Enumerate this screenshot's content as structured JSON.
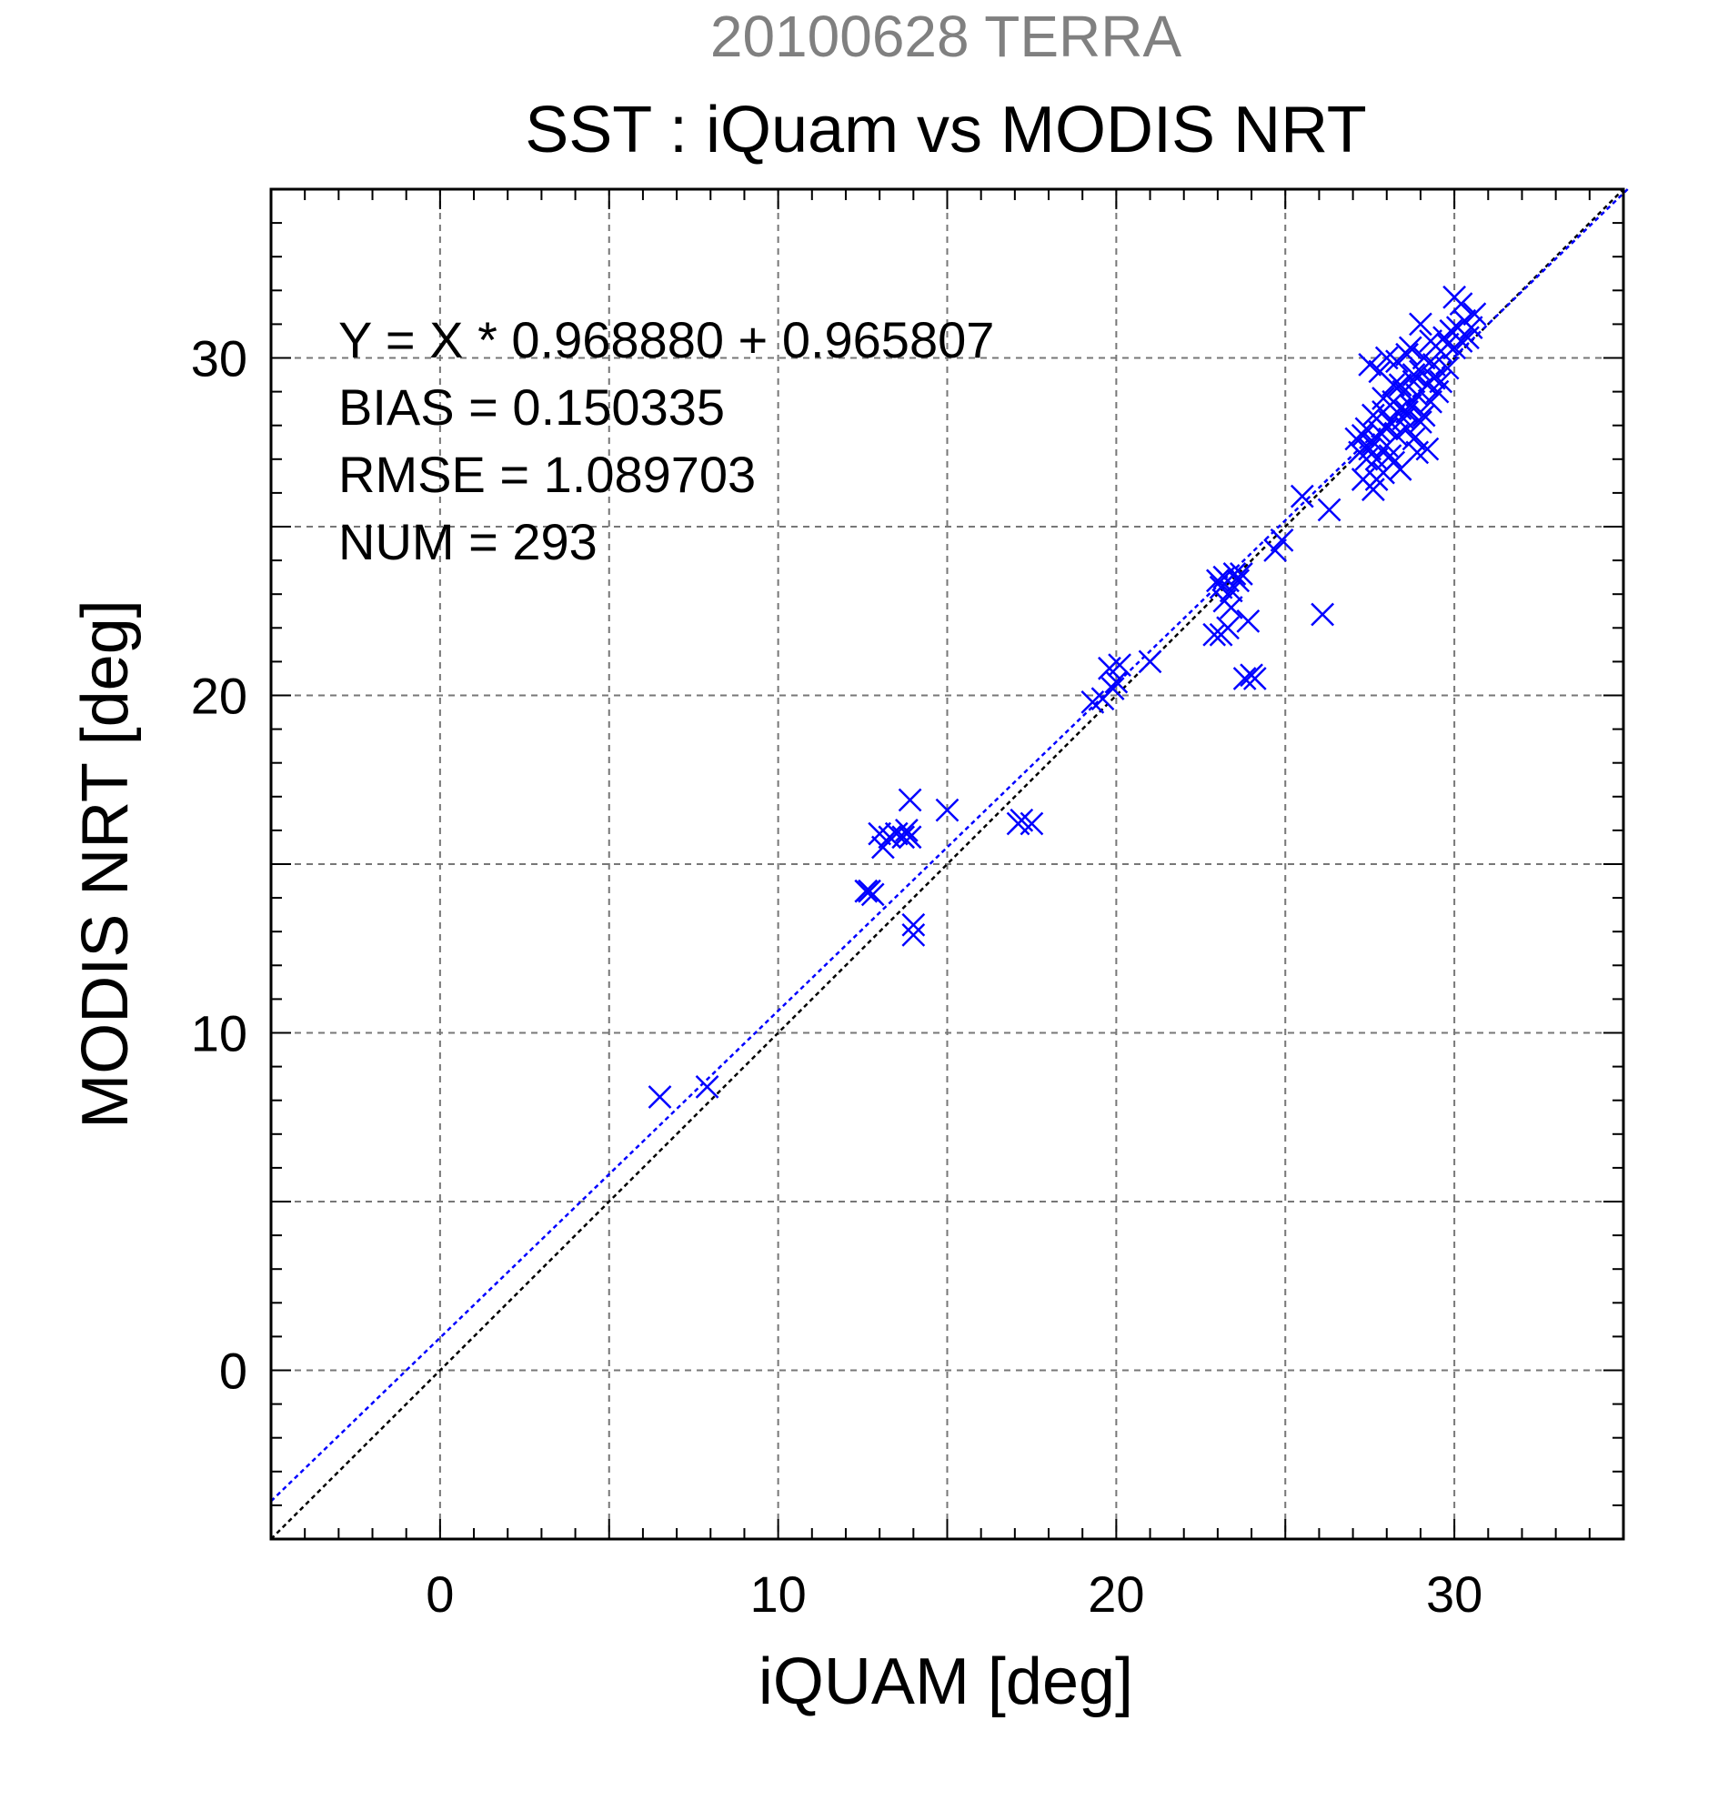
{
  "chart_data": {
    "type": "scatter",
    "suptitle": "20100628 TERRA",
    "title": "SST : iQuam vs MODIS NRT",
    "xlabel": "iQUAM [deg]",
    "ylabel": "MODIS NRT [deg]",
    "xlim": [
      -5,
      35
    ],
    "ylim": [
      -5,
      35
    ],
    "xticks": [
      0,
      10,
      20,
      30
    ],
    "yticks": [
      0,
      10,
      20,
      30
    ],
    "minor_step": 1,
    "grid_step": 5,
    "grid": true,
    "annotations": [
      "Y = X * 0.968880 + 0.965807",
      "BIAS = 0.150335",
      "RMSE = 1.089703",
      "NUM = 293"
    ],
    "regression": {
      "slope": 0.96888,
      "intercept": 0.965807,
      "color": "#0000ff"
    },
    "identity_line_color": "#000000",
    "marker": "x",
    "marker_color": "#0000ff",
    "points": [
      [
        6.5,
        8.1
      ],
      [
        7.9,
        8.4
      ],
      [
        12.6,
        14.2
      ],
      [
        12.7,
        14.2
      ],
      [
        12.8,
        14.1
      ],
      [
        13.0,
        15.9
      ],
      [
        13.1,
        15.5
      ],
      [
        13.3,
        15.8
      ],
      [
        13.5,
        15.9
      ],
      [
        13.7,
        15.8
      ],
      [
        13.8,
        16.0
      ],
      [
        13.9,
        15.8
      ],
      [
        13.9,
        16.9
      ],
      [
        14.0,
        13.2
      ],
      [
        14.0,
        12.9
      ],
      [
        15.0,
        16.6
      ],
      [
        17.1,
        16.2
      ],
      [
        17.2,
        16.3
      ],
      [
        17.5,
        16.2
      ],
      [
        19.3,
        19.8
      ],
      [
        19.6,
        19.9
      ],
      [
        19.8,
        20.8
      ],
      [
        19.9,
        20.2
      ],
      [
        20.0,
        20.4
      ],
      [
        20.1,
        20.9
      ],
      [
        21.0,
        21.0
      ],
      [
        22.9,
        21.8
      ],
      [
        23.1,
        21.8
      ],
      [
        23.3,
        22.0
      ],
      [
        23.0,
        23.4
      ],
      [
        23.1,
        23.2
      ],
      [
        23.2,
        23.5
      ],
      [
        23.3,
        23.4
      ],
      [
        23.4,
        23.1
      ],
      [
        23.5,
        23.6
      ],
      [
        23.6,
        23.4
      ],
      [
        23.2,
        22.8
      ],
      [
        23.4,
        22.6
      ],
      [
        23.7,
        23.6
      ],
      [
        23.9,
        22.2
      ],
      [
        23.8,
        20.5
      ],
      [
        24.0,
        20.6
      ],
      [
        24.1,
        20.5
      ],
      [
        24.7,
        24.3
      ],
      [
        24.9,
        24.6
      ],
      [
        25.5,
        25.9
      ],
      [
        26.1,
        22.4
      ],
      [
        26.3,
        25.5
      ],
      [
        27.1,
        27.6
      ],
      [
        27.2,
        27.2
      ],
      [
        27.3,
        26.4
      ],
      [
        27.4,
        27.9
      ],
      [
        27.5,
        27.3
      ],
      [
        27.6,
        26.1
      ],
      [
        27.6,
        28.3
      ],
      [
        27.7,
        27.0
      ],
      [
        27.8,
        27.8
      ],
      [
        27.9,
        26.6
      ],
      [
        27.9,
        28.8
      ],
      [
        28.0,
        27.4
      ],
      [
        28.1,
        28.1
      ],
      [
        28.2,
        26.9
      ],
      [
        28.2,
        29.2
      ],
      [
        28.3,
        27.7
      ],
      [
        28.4,
        28.5
      ],
      [
        28.4,
        26.7
      ],
      [
        28.5,
        29.0
      ],
      [
        28.6,
        27.9
      ],
      [
        28.7,
        28.6
      ],
      [
        28.7,
        30.3
      ],
      [
        28.8,
        29.3
      ],
      [
        28.9,
        27.2
      ],
      [
        28.9,
        28.9
      ],
      [
        29.0,
        29.6
      ],
      [
        29.1,
        28.3
      ],
      [
        29.1,
        30.0
      ],
      [
        29.2,
        29.2
      ],
      [
        29.3,
        28.7
      ],
      [
        29.3,
        30.5
      ],
      [
        29.4,
        29.8
      ],
      [
        29.5,
        29.0
      ],
      [
        29.6,
        30.2
      ],
      [
        29.7,
        30.6
      ],
      [
        29.8,
        29.7
      ],
      [
        29.9,
        30.8
      ],
      [
        30.0,
        30.3
      ],
      [
        30.0,
        31.8
      ],
      [
        30.1,
        30.9
      ],
      [
        30.2,
        30.5
      ],
      [
        30.3,
        31.1
      ],
      [
        30.4,
        30.6
      ],
      [
        30.5,
        30.9
      ],
      [
        30.6,
        31.3
      ],
      [
        27.5,
        29.8
      ],
      [
        27.8,
        29.6
      ],
      [
        28.0,
        30.0
      ],
      [
        28.3,
        29.9
      ],
      [
        28.6,
        30.1
      ],
      [
        29.0,
        31.0
      ],
      [
        27.4,
        27.0
      ],
      [
        27.7,
        26.4
      ],
      [
        28.1,
        27.1
      ],
      [
        28.8,
        27.6
      ],
      [
        29.2,
        27.3
      ],
      [
        27.9,
        28.4
      ],
      [
        28.5,
        28.2
      ],
      [
        29.4,
        29.4
      ],
      [
        28.2,
        28.7
      ],
      [
        28.8,
        29.5
      ],
      [
        29.6,
        29.3
      ],
      [
        27.3,
        27.7
      ],
      [
        27.6,
        27.5
      ],
      [
        28.4,
        29.2
      ],
      [
        29.0,
        28.1
      ],
      [
        29.8,
        30.4
      ],
      [
        30.2,
        31.6
      ],
      [
        28.6,
        28.4
      ],
      [
        28.0,
        27.9
      ]
    ]
  }
}
